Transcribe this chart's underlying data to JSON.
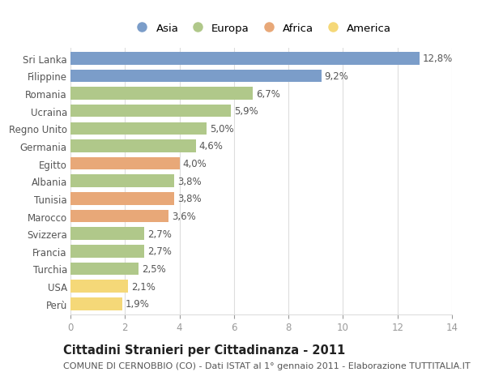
{
  "countries": [
    "Sri Lanka",
    "Filippine",
    "Romania",
    "Ucraina",
    "Regno Unito",
    "Germania",
    "Egitto",
    "Albania",
    "Tunisia",
    "Marocco",
    "Svizzera",
    "Francia",
    "Turchia",
    "USA",
    "Perù"
  ],
  "values": [
    12.8,
    9.2,
    6.7,
    5.9,
    5.0,
    4.6,
    4.0,
    3.8,
    3.8,
    3.6,
    2.7,
    2.7,
    2.5,
    2.1,
    1.9
  ],
  "continents": [
    "Asia",
    "Asia",
    "Europa",
    "Europa",
    "Europa",
    "Europa",
    "Africa",
    "Europa",
    "Africa",
    "Africa",
    "Europa",
    "Europa",
    "Europa",
    "America",
    "America"
  ],
  "continent_colors": {
    "Asia": "#7b9dc9",
    "Europa": "#b0c88a",
    "Africa": "#e8a878",
    "America": "#f5d878"
  },
  "legend_order": [
    "Asia",
    "Europa",
    "Africa",
    "America"
  ],
  "title": "Cittadini Stranieri per Cittadinanza - 2011",
  "subtitle": "COMUNE DI CERNOBBIO (CO) - Dati ISTAT al 1° gennaio 2011 - Elaborazione TUTTITALIA.IT",
  "xlim": [
    0,
    14
  ],
  "xticks": [
    0,
    2,
    4,
    6,
    8,
    10,
    12,
    14
  ],
  "background_color": "#ffffff",
  "grid_color": "#dddddd",
  "bar_height": 0.72,
  "label_fontsize": 8.5,
  "title_fontsize": 10.5,
  "subtitle_fontsize": 8,
  "legend_fontsize": 9.5
}
